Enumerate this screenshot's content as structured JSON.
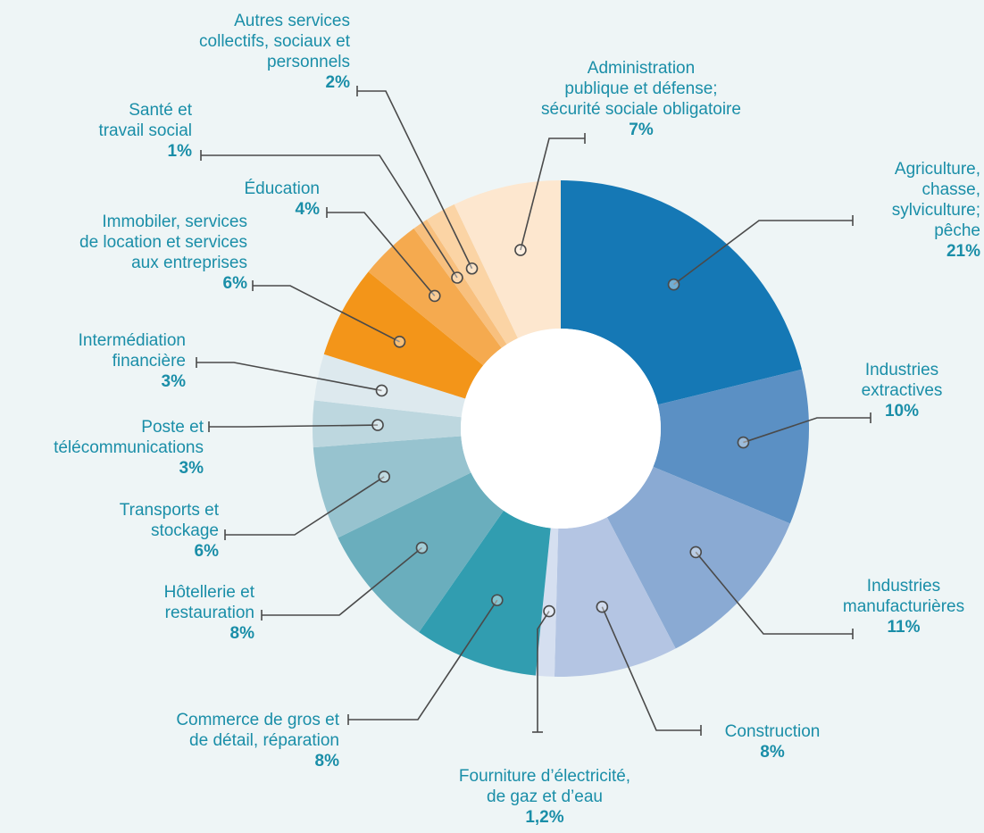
{
  "chart_data": {
    "type": "donut",
    "categories": [
      "Agriculture, chasse,\nsylviculture; pêche",
      "Industries\nextractives",
      "Industries\nmanufacturières",
      "Construction",
      "Fourniture d’électricité,\nde gaz et d’eau",
      "Commerce de gros et\nde détail, réparation",
      "Hôtellerie et\nrestauration",
      "Transports et\nstockage",
      "Poste et\ntélécommunications",
      "Intermédiation\nfinancière",
      "Immobiler, services\nde location et services\naux entreprises",
      "Éducation",
      "Santé et\ntravail social",
      "Autres services\ncollectifs, sociaux et\npersonnels",
      "Administration\npublique et défense;\nsécurité sociale obligatoire"
    ],
    "values": [
      21,
      10,
      11,
      8,
      1.2,
      8,
      8,
      6,
      3,
      3,
      6,
      4,
      1,
      2,
      7
    ],
    "value_labels": [
      "21%",
      "10%",
      "11%",
      "8%",
      "1,2%",
      "8%",
      "8%",
      "6%",
      "3%",
      "3%",
      "6%",
      "4%",
      "1%",
      "2%",
      "7%"
    ],
    "colors": [
      "#1578b5",
      "#5b90c4",
      "#8aaad3",
      "#b4c5e3",
      "#d5dff0",
      "#319db0",
      "#6aaebd",
      "#97c3cf",
      "#bdd7df",
      "#dde9ee",
      "#f39519",
      "#f5aa4f",
      "#f8c07e",
      "#fbd4a5",
      "#fde7cf"
    ]
  }
}
